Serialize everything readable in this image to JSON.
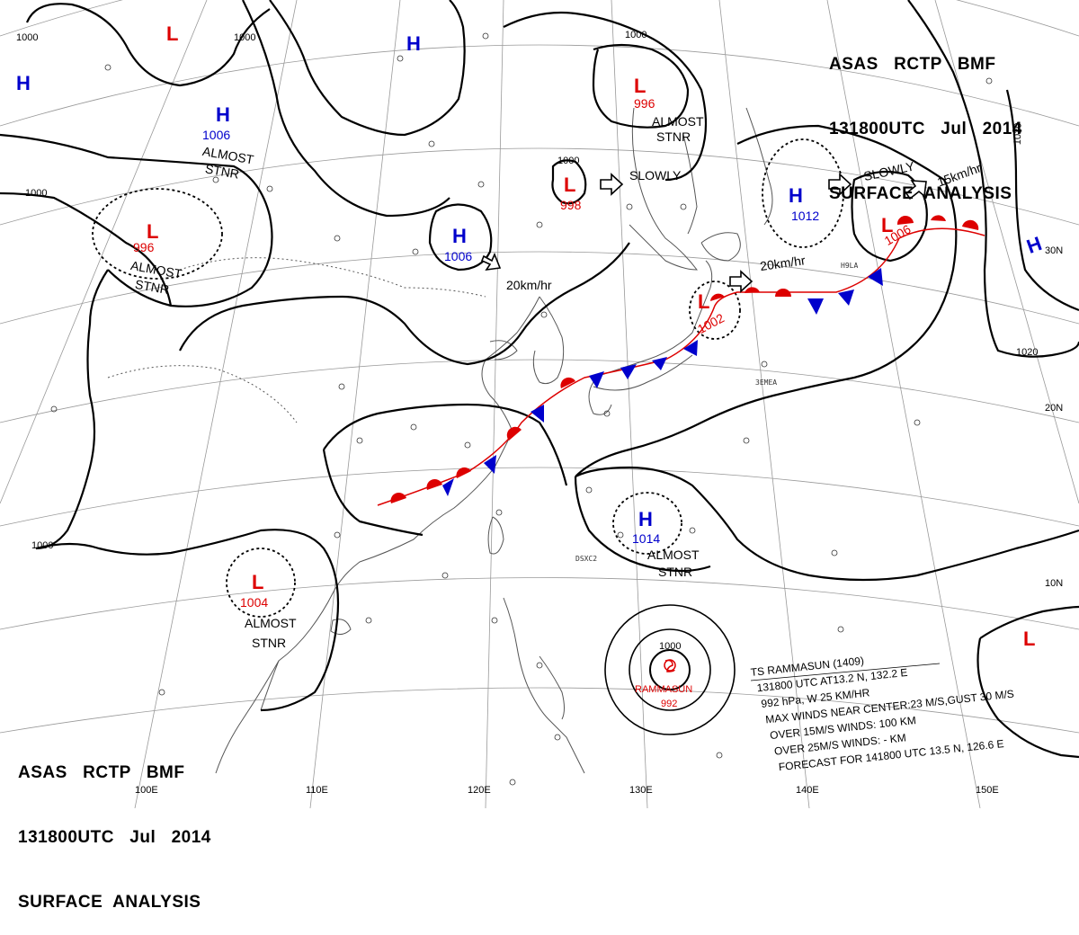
{
  "header": {
    "line1": "ASAS   RCTP   BMF",
    "line2": "131800UTC   Jul   2014",
    "line3": "SURFACE  ANALYSIS"
  },
  "isobar_labels": [
    "1000",
    "1000",
    "1000",
    "1000",
    "1000",
    "1000",
    "1020",
    "1020",
    "1000"
  ],
  "pressure_systems": [
    {
      "type": "H",
      "value": ""
    },
    {
      "type": "L",
      "value": ""
    },
    {
      "type": "H",
      "value": ""
    },
    {
      "type": "H",
      "value": "1006"
    },
    {
      "type": "L",
      "value": "996"
    },
    {
      "type": "L",
      "value": "996"
    },
    {
      "type": "L",
      "value": "998"
    },
    {
      "type": "H",
      "value": "1006"
    },
    {
      "type": "H",
      "value": "1012"
    },
    {
      "type": "L",
      "value": "1006"
    },
    {
      "type": "H",
      "value": ""
    },
    {
      "type": "L",
      "value": "1002"
    },
    {
      "type": "H",
      "value": "1014"
    },
    {
      "type": "L",
      "value": "1004"
    },
    {
      "type": "L",
      "value": ""
    }
  ],
  "movement_notes": [
    "ALMOST",
    "STNR",
    "ALMOST",
    "STNR",
    "ALMOST",
    "STNR",
    "SLOWLY",
    "20km/hr",
    "SLOWLY",
    "15km/hr",
    "20km/hr",
    "ALMOST",
    "STNR",
    "ALMOST",
    "STNR"
  ],
  "longitude_labels": [
    "100E",
    "110E",
    "120E",
    "130E",
    "140E",
    "150E"
  ],
  "latitude_labels": [
    "30N",
    "20N",
    "10N"
  ],
  "typhoon": {
    "isobar": "1000",
    "name": "RAMMASUN",
    "pressure": "992",
    "bulletin": [
      "TS  RAMMASUN  (1409)",
      "131800 UTC  AT13.2 N, 132.2 E",
      "992 hPa, W  25 KM/HR",
      "MAX WINDS NEAR CENTER:23 M/S,GUST 30 M/S",
      "OVER 15M/S WINDS: 100 KM",
      "OVER 25M/S WINDS: - KM",
      "FORECAST FOR 141800 UTC 13.5 N, 126.6 E"
    ]
  },
  "station_labels": [
    "3EMEA",
    "H9LA",
    "DSXC2"
  ],
  "colors": {
    "high": "#0000cc",
    "low": "#dd0000",
    "isobar": "#000000",
    "grid": "#888888",
    "coast": "#555555"
  }
}
